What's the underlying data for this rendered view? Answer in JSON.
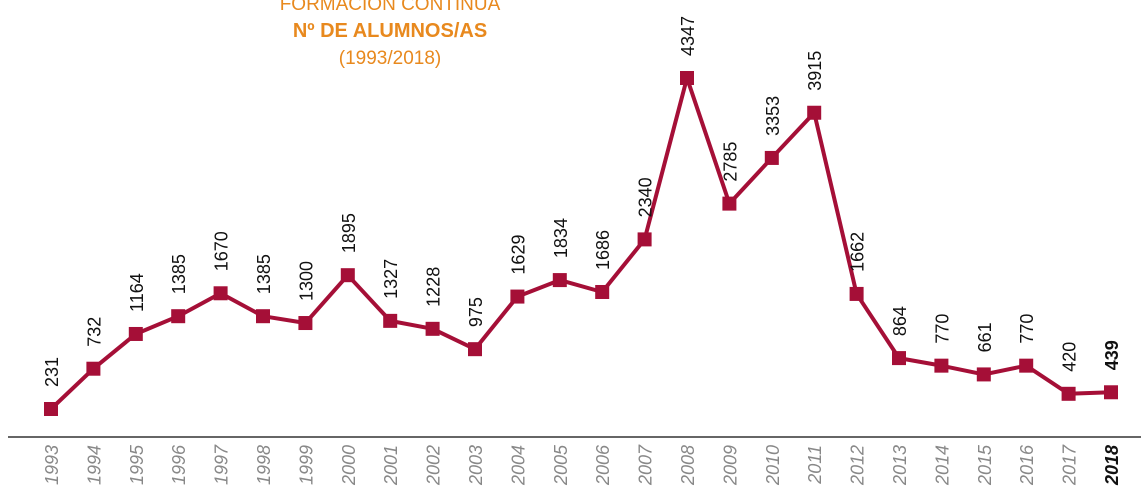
{
  "chart_data": {
    "type": "line",
    "title": "FORMACIÓN CONTINUA",
    "subtitle": "Nº DE ALUMNOS/AS",
    "period": "(1993/2018)",
    "categories": [
      "1993",
      "1994",
      "1995",
      "1996",
      "1997",
      "1998",
      "1999",
      "2000",
      "2001",
      "2002",
      "2003",
      "2004",
      "2005",
      "2006",
      "2007",
      "2008",
      "2009",
      "2010",
      "2011",
      "2012",
      "2013",
      "2014",
      "2015",
      "2016",
      "2017",
      "2018"
    ],
    "series": [
      {
        "color": "#a50f37",
        "values": [
          231,
          732,
          1164,
          1385,
          1670,
          1385,
          1300,
          1895,
          1327,
          1228,
          975,
          1629,
          1834,
          1686,
          2340,
          4347,
          2785,
          3353,
          3915,
          1662,
          864,
          770,
          661,
          770,
          420,
          439
        ]
      }
    ]
  }
}
